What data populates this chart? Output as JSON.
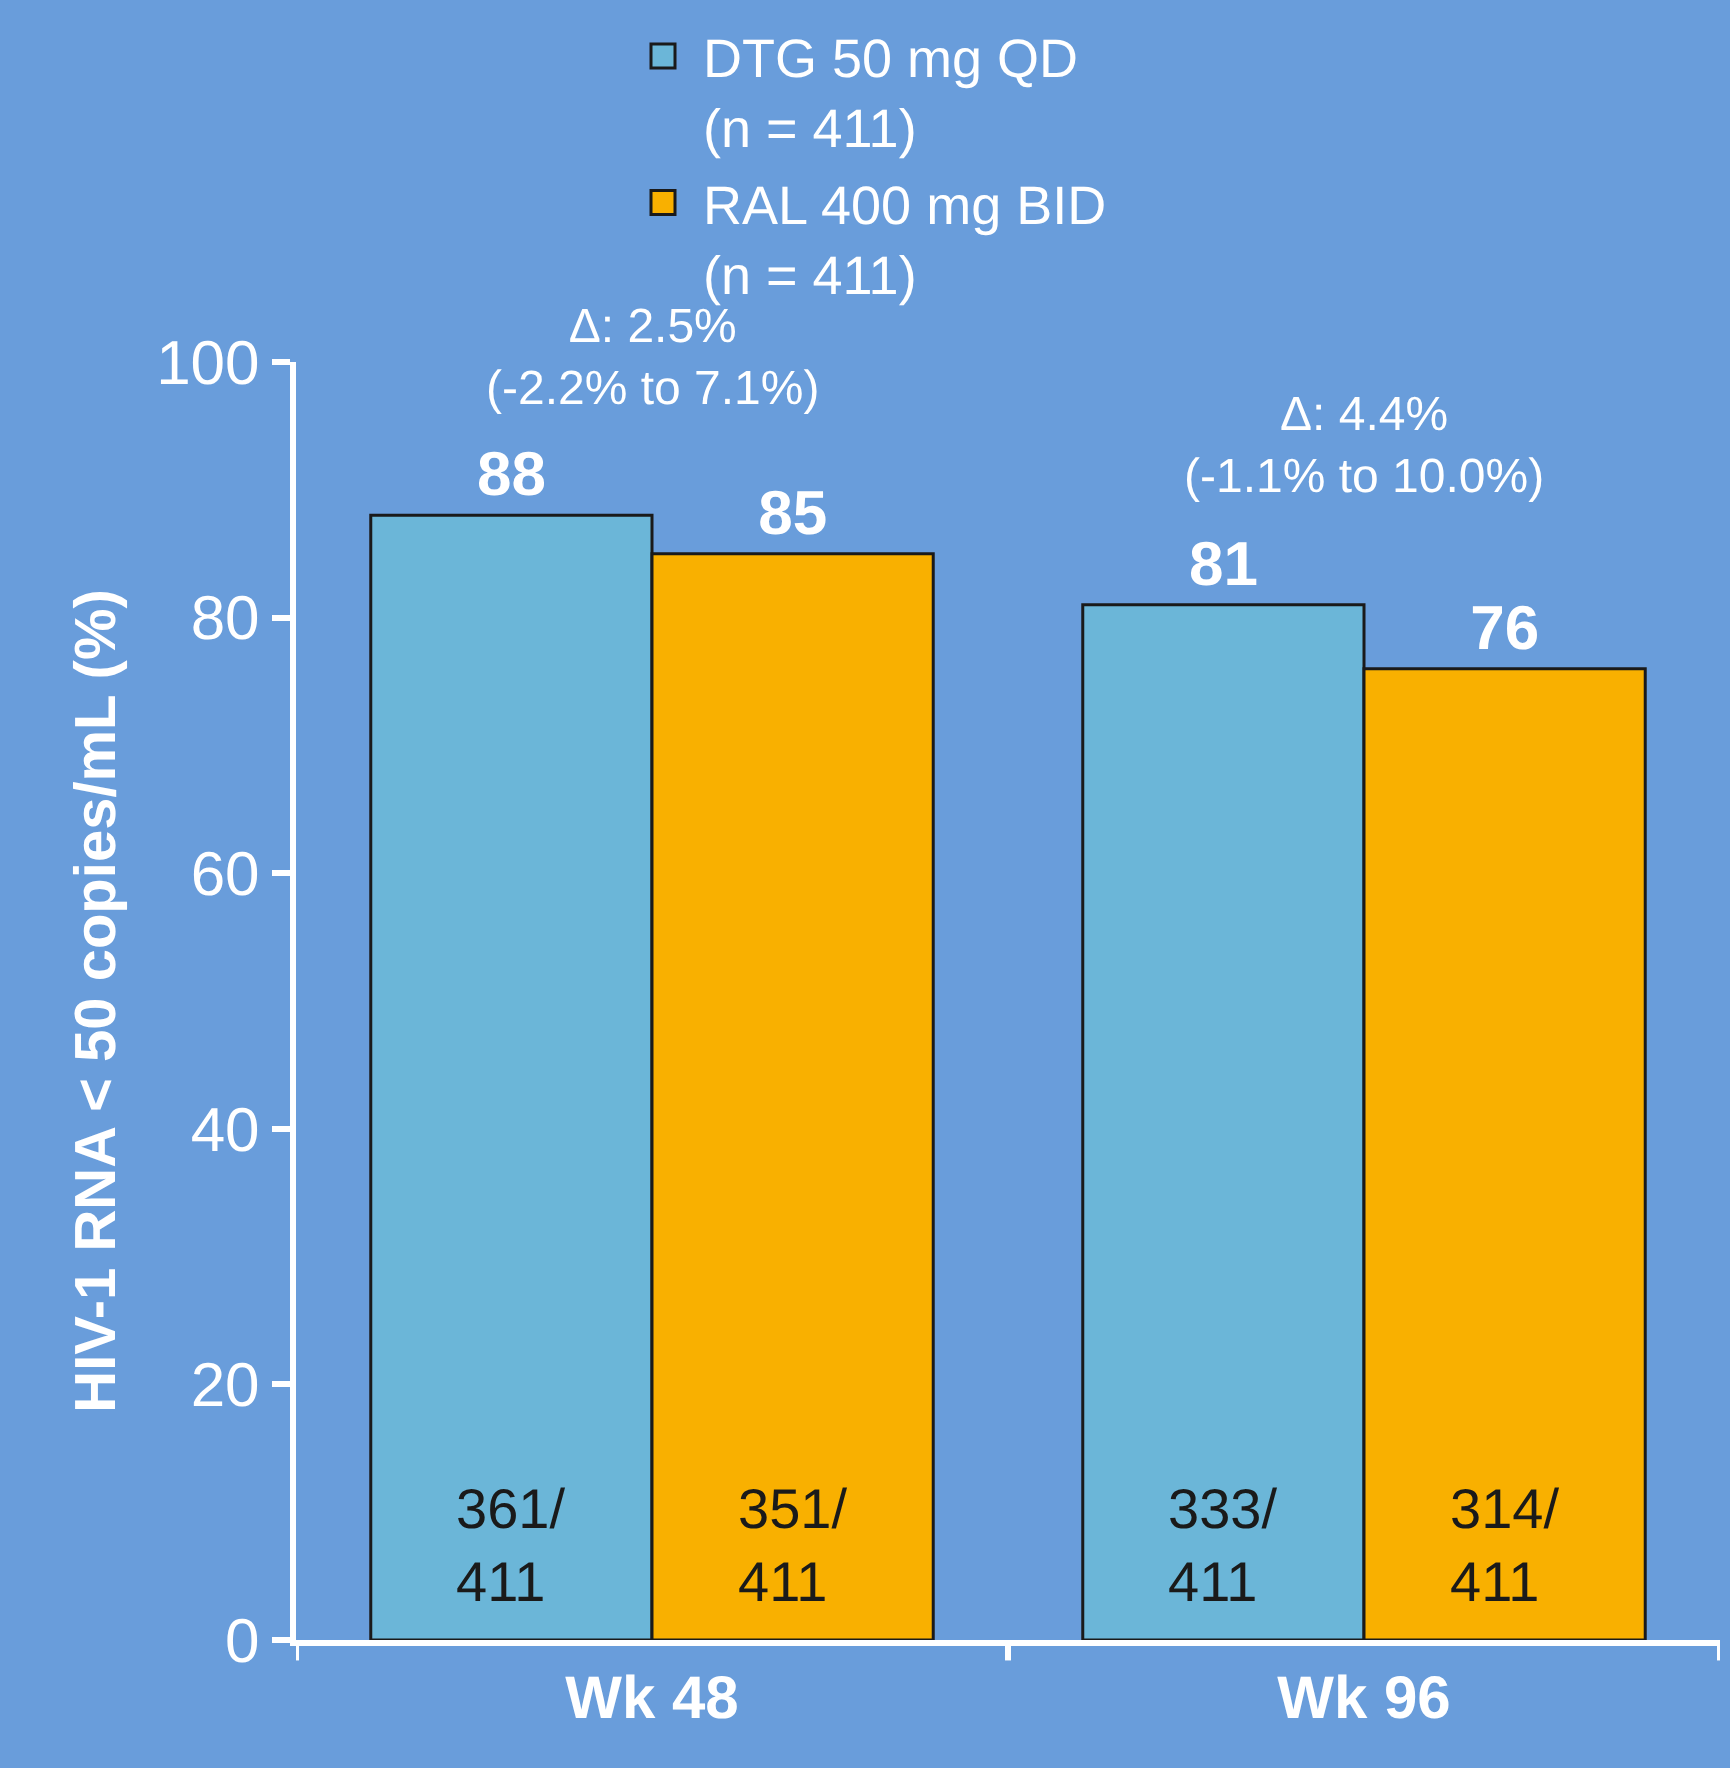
{
  "chart_data": {
    "type": "bar",
    "ylabel": "HIV-1 RNA < 50 copies/mL (%)",
    "categories": [
      "Wk 48",
      "Wk 96"
    ],
    "series": [
      {
        "name": "DTG 50 mg QD\n(n = 411)",
        "color": "#6bb6d8",
        "values": [
          88,
          81
        ]
      },
      {
        "name": "RAL 400 mg BID\n(n = 411)",
        "color": "#f9b000",
        "values": [
          85,
          76
        ]
      }
    ],
    "ylim": [
      0,
      100
    ],
    "yticks": [
      0,
      20,
      40,
      60,
      80,
      100
    ],
    "grid": false,
    "legend": "top",
    "data_labels": true,
    "annotations": [
      "Δ: 2.5%\n(-2.2% to 7.1%)",
      "Δ: 4.4%\n(-1.1% to 10.0%)",
      "361/\n411",
      "351/\n411",
      "333/\n411",
      "314/\n411"
    ]
  }
}
